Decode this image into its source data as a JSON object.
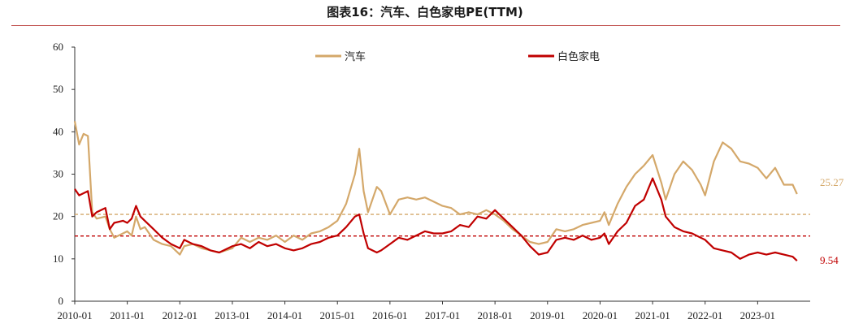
{
  "header": {
    "title": "图表16：汽车、白色家电PE(TTM)"
  },
  "colors": {
    "auto": "#d4a86a",
    "appliance": "#c00000",
    "rule": "#c0504d",
    "axis": "#333333"
  },
  "chart_data": {
    "type": "line",
    "title": "图表16：汽车、白色家电PE(TTM)",
    "ylim": [
      0,
      60
    ],
    "yticks": [
      "0",
      "10",
      "20",
      "30",
      "40",
      "50",
      "60"
    ],
    "xticks": [
      "2010-01",
      "2011-01",
      "2012-01",
      "2013-01",
      "2014-01",
      "2015-01",
      "2016-01",
      "2017-01",
      "2018-01",
      "2019-01",
      "2020-01",
      "2021-01",
      "2022-01",
      "2023-01"
    ],
    "legend_position": "top-center",
    "series": [
      {
        "name": "汽车",
        "color": "#d4a86a",
        "last_label": "25.27",
        "mean_line": 20.5,
        "points": [
          [
            "2010-01",
            42.5
          ],
          [
            "2010-02",
            37
          ],
          [
            "2010-03",
            39.5
          ],
          [
            "2010-04",
            39
          ],
          [
            "2010-05",
            21
          ],
          [
            "2010-06",
            19.5
          ],
          [
            "2010-08",
            20
          ],
          [
            "2010-09",
            17
          ],
          [
            "2010-10",
            15
          ],
          [
            "2010-12",
            16
          ],
          [
            "2011-01",
            16.5
          ],
          [
            "2011-02",
            15.5
          ],
          [
            "2011-03",
            20
          ],
          [
            "2011-04",
            17
          ],
          [
            "2011-05",
            17.5
          ],
          [
            "2011-07",
            14.5
          ],
          [
            "2011-09",
            13.5
          ],
          [
            "2011-11",
            13
          ],
          [
            "2012-01",
            11
          ],
          [
            "2012-02",
            13
          ],
          [
            "2012-04",
            13.5
          ],
          [
            "2012-06",
            12.5
          ],
          [
            "2012-08",
            12
          ],
          [
            "2012-10",
            11.5
          ],
          [
            "2013-01",
            12.5
          ],
          [
            "2013-03",
            15
          ],
          [
            "2013-05",
            14
          ],
          [
            "2013-07",
            15
          ],
          [
            "2013-09",
            14.5
          ],
          [
            "2013-11",
            15.5
          ],
          [
            "2014-01",
            14
          ],
          [
            "2014-03",
            15.5
          ],
          [
            "2014-05",
            14.5
          ],
          [
            "2014-07",
            16
          ],
          [
            "2014-09",
            16.5
          ],
          [
            "2014-11",
            17.5
          ],
          [
            "2015-01",
            19
          ],
          [
            "2015-03",
            23
          ],
          [
            "2015-05",
            30
          ],
          [
            "2015-06",
            36
          ],
          [
            "2015-07",
            26
          ],
          [
            "2015-08",
            21
          ],
          [
            "2015-10",
            27
          ],
          [
            "2015-11",
            26
          ],
          [
            "2016-01",
            20.5
          ],
          [
            "2016-03",
            24
          ],
          [
            "2016-05",
            24.5
          ],
          [
            "2016-07",
            24
          ],
          [
            "2016-09",
            24.5
          ],
          [
            "2016-11",
            23.5
          ],
          [
            "2017-01",
            22.5
          ],
          [
            "2017-03",
            22
          ],
          [
            "2017-05",
            20.5
          ],
          [
            "2017-07",
            21
          ],
          [
            "2017-09",
            20.5
          ],
          [
            "2017-11",
            21.5
          ],
          [
            "2018-01",
            20.5
          ],
          [
            "2018-03",
            19
          ],
          [
            "2018-05",
            17
          ],
          [
            "2018-07",
            15.5
          ],
          [
            "2018-09",
            14
          ],
          [
            "2018-11",
            13.5
          ],
          [
            "2019-01",
            14
          ],
          [
            "2019-03",
            17
          ],
          [
            "2019-05",
            16.5
          ],
          [
            "2019-07",
            17
          ],
          [
            "2019-09",
            18
          ],
          [
            "2019-11",
            18.5
          ],
          [
            "2020-01",
            19
          ],
          [
            "2020-02",
            21
          ],
          [
            "2020-03",
            18
          ],
          [
            "2020-05",
            23
          ],
          [
            "2020-07",
            27
          ],
          [
            "2020-09",
            30
          ],
          [
            "2020-11",
            32
          ],
          [
            "2021-01",
            34.5
          ],
          [
            "2021-03",
            28
          ],
          [
            "2021-04",
            24
          ],
          [
            "2021-06",
            30
          ],
          [
            "2021-08",
            33
          ],
          [
            "2021-10",
            31
          ],
          [
            "2021-12",
            27.5
          ],
          [
            "2022-01",
            25
          ],
          [
            "2022-03",
            33
          ],
          [
            "2022-05",
            37.5
          ],
          [
            "2022-07",
            36
          ],
          [
            "2022-09",
            33
          ],
          [
            "2022-11",
            32.5
          ],
          [
            "2023-01",
            31.5
          ],
          [
            "2023-03",
            29
          ],
          [
            "2023-05",
            31.5
          ],
          [
            "2023-07",
            27.5
          ],
          [
            "2023-09",
            27.5
          ],
          [
            "2023-10",
            25.3
          ]
        ]
      },
      {
        "name": "白色家电",
        "color": "#c00000",
        "last_label": "9.54",
        "mean_line": 15.4,
        "points": [
          [
            "2010-01",
            26.5
          ],
          [
            "2010-02",
            25
          ],
          [
            "2010-03",
            25.5
          ],
          [
            "2010-04",
            26
          ],
          [
            "2010-05",
            20
          ],
          [
            "2010-06",
            21
          ],
          [
            "2010-08",
            22
          ],
          [
            "2010-09",
            17
          ],
          [
            "2010-10",
            18.5
          ],
          [
            "2010-12",
            19
          ],
          [
            "2011-01",
            18.5
          ],
          [
            "2011-02",
            19.5
          ],
          [
            "2011-03",
            22.5
          ],
          [
            "2011-04",
            20
          ],
          [
            "2011-05",
            19
          ],
          [
            "2011-07",
            17
          ],
          [
            "2011-09",
            15
          ],
          [
            "2011-11",
            13.5
          ],
          [
            "2012-01",
            12.5
          ],
          [
            "2012-02",
            14.5
          ],
          [
            "2012-04",
            13.5
          ],
          [
            "2012-06",
            13
          ],
          [
            "2012-08",
            12
          ],
          [
            "2012-10",
            11.5
          ],
          [
            "2013-01",
            13
          ],
          [
            "2013-03",
            13.5
          ],
          [
            "2013-05",
            12.5
          ],
          [
            "2013-07",
            14
          ],
          [
            "2013-09",
            13
          ],
          [
            "2013-11",
            13.5
          ],
          [
            "2014-01",
            12.5
          ],
          [
            "2014-03",
            12
          ],
          [
            "2014-05",
            12.5
          ],
          [
            "2014-07",
            13.5
          ],
          [
            "2014-09",
            14
          ],
          [
            "2014-11",
            15
          ],
          [
            "2015-01",
            15.5
          ],
          [
            "2015-03",
            17.5
          ],
          [
            "2015-05",
            20
          ],
          [
            "2015-06",
            20.5
          ],
          [
            "2015-07",
            16
          ],
          [
            "2015-08",
            12.5
          ],
          [
            "2015-10",
            11.5
          ],
          [
            "2015-11",
            12
          ],
          [
            "2016-01",
            13.5
          ],
          [
            "2016-03",
            15
          ],
          [
            "2016-05",
            14.5
          ],
          [
            "2016-07",
            15.5
          ],
          [
            "2016-09",
            16.5
          ],
          [
            "2016-11",
            16
          ],
          [
            "2017-01",
            16
          ],
          [
            "2017-03",
            16.5
          ],
          [
            "2017-05",
            18
          ],
          [
            "2017-07",
            17.5
          ],
          [
            "2017-09",
            20
          ],
          [
            "2017-11",
            19.5
          ],
          [
            "2018-01",
            21.5
          ],
          [
            "2018-03",
            19.5
          ],
          [
            "2018-05",
            17.5
          ],
          [
            "2018-07",
            15.5
          ],
          [
            "2018-09",
            13
          ],
          [
            "2018-11",
            11
          ],
          [
            "2019-01",
            11.5
          ],
          [
            "2019-03",
            14.5
          ],
          [
            "2019-05",
            15
          ],
          [
            "2019-07",
            14.5
          ],
          [
            "2019-09",
            15.5
          ],
          [
            "2019-11",
            14.5
          ],
          [
            "2020-01",
            15
          ],
          [
            "2020-02",
            16
          ],
          [
            "2020-03",
            13.5
          ],
          [
            "2020-05",
            16.5
          ],
          [
            "2020-07",
            18.5
          ],
          [
            "2020-09",
            22.5
          ],
          [
            "2020-11",
            24
          ],
          [
            "2021-01",
            29
          ],
          [
            "2021-03",
            24
          ],
          [
            "2021-04",
            20
          ],
          [
            "2021-06",
            17.5
          ],
          [
            "2021-08",
            16.5
          ],
          [
            "2021-10",
            16
          ],
          [
            "2021-12",
            15
          ],
          [
            "2022-01",
            14.5
          ],
          [
            "2022-03",
            12.5
          ],
          [
            "2022-05",
            12
          ],
          [
            "2022-07",
            11.5
          ],
          [
            "2022-09",
            10
          ],
          [
            "2022-11",
            11
          ],
          [
            "2023-01",
            11.5
          ],
          [
            "2023-03",
            11
          ],
          [
            "2023-05",
            11.5
          ],
          [
            "2023-07",
            11
          ],
          [
            "2023-09",
            10.5
          ],
          [
            "2023-10",
            9.54
          ]
        ]
      }
    ]
  }
}
